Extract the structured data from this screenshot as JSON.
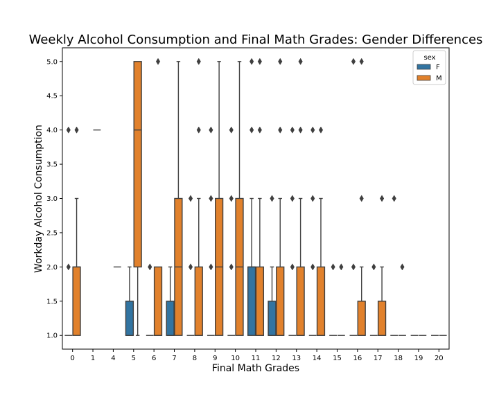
{
  "chart_data": {
    "type": "boxplot",
    "title": "Weekly Alcohol Consumption and Final Math Grades: Gender Differences",
    "xlabel": "Final Math Grades",
    "ylabel": "Workday Alcohol Consumption",
    "ylim": [
      0.8,
      5.2
    ],
    "yticks": [
      "1.0",
      "1.5",
      "2.0",
      "2.5",
      "3.0",
      "3.5",
      "4.0",
      "4.5",
      "5.0"
    ],
    "categories": [
      "0",
      "1",
      "4",
      "5",
      "6",
      "7",
      "8",
      "9",
      "10",
      "11",
      "12",
      "13",
      "14",
      "15",
      "16",
      "17",
      "18",
      "19",
      "20"
    ],
    "grid": false,
    "legend": {
      "title": "sex",
      "position": "top-right",
      "entries": [
        {
          "name": "F",
          "color": "#3274a1"
        },
        {
          "name": "M",
          "color": "#e1812c"
        }
      ]
    },
    "series": [
      {
        "name": "F",
        "color": "#3274a1",
        "boxes": [
          {
            "x": "0",
            "q1": 1,
            "median": 1,
            "q3": 1,
            "lo": 1,
            "hi": 1,
            "outliers": [
              2,
              4
            ]
          },
          {
            "x": "5",
            "q1": 1,
            "median": 1,
            "q3": 1.5,
            "lo": 1,
            "hi": 2,
            "outliers": []
          },
          {
            "x": "6",
            "q1": 1,
            "median": 1,
            "q3": 1,
            "lo": 1,
            "hi": 1,
            "outliers": [
              2
            ]
          },
          {
            "x": "7",
            "q1": 1,
            "median": 1,
            "q3": 1.5,
            "lo": 1,
            "hi": 2,
            "outliers": []
          },
          {
            "x": "8",
            "q1": 1,
            "median": 1,
            "q3": 1,
            "lo": 1,
            "hi": 1,
            "outliers": [
              2,
              3
            ]
          },
          {
            "x": "9",
            "q1": 1,
            "median": 1,
            "q3": 1,
            "lo": 1,
            "hi": 1,
            "outliers": [
              2,
              3,
              4
            ]
          },
          {
            "x": "10",
            "q1": 1,
            "median": 1,
            "q3": 1,
            "lo": 1,
            "hi": 1,
            "outliers": [
              2,
              3,
              4
            ]
          },
          {
            "x": "11",
            "q1": 1,
            "median": 2,
            "q3": 2,
            "lo": 1,
            "hi": 3,
            "outliers": [
              4,
              5
            ]
          },
          {
            "x": "12",
            "q1": 1,
            "median": 1,
            "q3": 1.5,
            "lo": 1,
            "hi": 2,
            "outliers": [
              3
            ]
          },
          {
            "x": "13",
            "q1": 1,
            "median": 1,
            "q3": 1,
            "lo": 1,
            "hi": 1,
            "outliers": [
              2,
              3,
              4
            ]
          },
          {
            "x": "14",
            "q1": 1,
            "median": 1,
            "q3": 1,
            "lo": 1,
            "hi": 1,
            "outliers": [
              2,
              3,
              4
            ]
          },
          {
            "x": "15",
            "q1": 1,
            "median": 1,
            "q3": 1,
            "lo": 1,
            "hi": 1,
            "outliers": [
              2
            ]
          },
          {
            "x": "16",
            "q1": 1,
            "median": 1,
            "q3": 1,
            "lo": 1,
            "hi": 1,
            "outliers": [
              2,
              5
            ]
          },
          {
            "x": "17",
            "q1": 1,
            "median": 1,
            "q3": 1,
            "lo": 1,
            "hi": 1,
            "outliers": [
              2
            ]
          },
          {
            "x": "18",
            "q1": 1,
            "median": 1,
            "q3": 1,
            "lo": 1,
            "hi": 1,
            "outliers": [
              3
            ]
          },
          {
            "x": "19",
            "q1": 1,
            "median": 1,
            "q3": 1,
            "lo": 1,
            "hi": 1,
            "outliers": []
          },
          {
            "x": "20",
            "q1": 1,
            "median": 1,
            "q3": 1,
            "lo": 1,
            "hi": 1,
            "outliers": []
          }
        ]
      },
      {
        "name": "M",
        "color": "#e1812c",
        "boxes": [
          {
            "x": "0",
            "q1": 1,
            "median": 2,
            "q3": 2,
            "lo": 1,
            "hi": 3,
            "outliers": [
              4
            ]
          },
          {
            "x": "1",
            "q1": 4,
            "median": 4,
            "q3": 4,
            "lo": 4,
            "hi": 4,
            "outliers": []
          },
          {
            "x": "4",
            "q1": 2,
            "median": 2,
            "q3": 2,
            "lo": 2,
            "hi": 2,
            "outliers": []
          },
          {
            "x": "5",
            "q1": 2,
            "median": 4,
            "q3": 5,
            "lo": 1,
            "hi": 5,
            "outliers": []
          },
          {
            "x": "6",
            "q1": 1,
            "median": 1,
            "q3": 2,
            "lo": 1,
            "hi": 2,
            "outliers": [
              5
            ]
          },
          {
            "x": "7",
            "q1": 1,
            "median": 2,
            "q3": 3,
            "lo": 1,
            "hi": 5,
            "outliers": []
          },
          {
            "x": "8",
            "q1": 1,
            "median": 1,
            "q3": 2,
            "lo": 1,
            "hi": 3,
            "outliers": [
              4,
              5
            ]
          },
          {
            "x": "9",
            "q1": 1,
            "median": 2,
            "q3": 3,
            "lo": 1,
            "hi": 5,
            "outliers": []
          },
          {
            "x": "10",
            "q1": 1,
            "median": 2,
            "q3": 3,
            "lo": 1,
            "hi": 5,
            "outliers": []
          },
          {
            "x": "11",
            "q1": 1,
            "median": 1,
            "q3": 2,
            "lo": 1,
            "hi": 3,
            "outliers": [
              4,
              5
            ]
          },
          {
            "x": "12",
            "q1": 1,
            "median": 1,
            "q3": 2,
            "lo": 1,
            "hi": 3,
            "outliers": [
              4,
              5
            ]
          },
          {
            "x": "13",
            "q1": 1,
            "median": 1,
            "q3": 2,
            "lo": 1,
            "hi": 3,
            "outliers": [
              4,
              5
            ]
          },
          {
            "x": "14",
            "q1": 1,
            "median": 1,
            "q3": 2,
            "lo": 1,
            "hi": 3,
            "outliers": [
              4
            ]
          },
          {
            "x": "15",
            "q1": 1,
            "median": 1,
            "q3": 1,
            "lo": 1,
            "hi": 1,
            "outliers": [
              2
            ]
          },
          {
            "x": "16",
            "q1": 1,
            "median": 1,
            "q3": 1.5,
            "lo": 1,
            "hi": 2,
            "outliers": [
              3,
              5
            ]
          },
          {
            "x": "17",
            "q1": 1,
            "median": 1,
            "q3": 1.5,
            "lo": 1,
            "hi": 2,
            "outliers": [
              3
            ]
          },
          {
            "x": "18",
            "q1": 1,
            "median": 1,
            "q3": 1,
            "lo": 1,
            "hi": 1,
            "outliers": [
              2
            ]
          },
          {
            "x": "19",
            "q1": 1,
            "median": 1,
            "q3": 1,
            "lo": 1,
            "hi": 1,
            "outliers": []
          },
          {
            "x": "20",
            "q1": 1,
            "median": 1,
            "q3": 1,
            "lo": 1,
            "hi": 1,
            "outliers": []
          }
        ]
      }
    ]
  }
}
